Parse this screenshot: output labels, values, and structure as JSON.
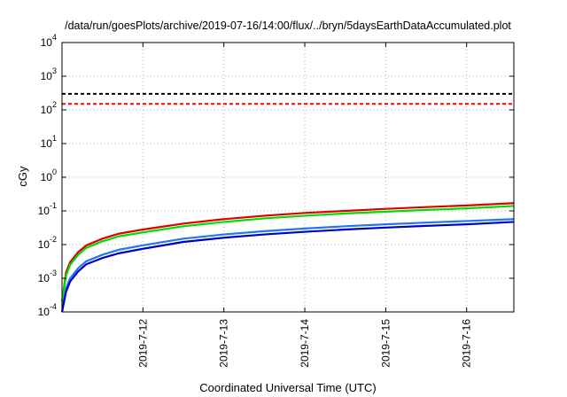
{
  "chart_data": {
    "type": "line",
    "title": "/data/run/goesPlots/archive/2019-07-16/14:00/flux/../bryn/5daysEarthDataAccumulated.plot",
    "xlabel": "Coordinated Universal Time (UTC)",
    "ylabel": "cGy",
    "xlim": [
      "2019-07-11 00:00",
      "2019-07-16 14:00"
    ],
    "ylim": [
      0.0001,
      10000
    ],
    "yscale": "log",
    "grid": true,
    "x_tick_labels": [
      "2019-7-12",
      "2019-7-13",
      "2019-7-14",
      "2019-7-15",
      "2019-7-16"
    ],
    "y_ticks": [
      {
        "base": "10",
        "exp": "-4"
      },
      {
        "base": "10",
        "exp": "-3"
      },
      {
        "base": "10",
        "exp": "-2"
      },
      {
        "base": "10",
        "exp": "-1"
      },
      {
        "base": "10",
        "exp": "0"
      },
      {
        "base": "10",
        "exp": "1"
      },
      {
        "base": "10",
        "exp": "2"
      },
      {
        "base": "10",
        "exp": "3"
      },
      {
        "base": "10",
        "exp": "4"
      }
    ],
    "thresholds": [
      {
        "value": 300,
        "color": "#000000",
        "style": "dashed"
      },
      {
        "value": 150,
        "color": "#ff0000",
        "style": "dashed"
      }
    ],
    "x": [
      "2019-07-11 00:00",
      "2019-07-11 01:12",
      "2019-07-11 02:24",
      "2019-07-11 04:48",
      "2019-07-11 07:12",
      "2019-07-11 12:00",
      "2019-07-11 16:48",
      "2019-07-12 00:00",
      "2019-07-12 12:00",
      "2019-07-13 00:00",
      "2019-07-13 12:00",
      "2019-07-14 00:00",
      "2019-07-14 12:00",
      "2019-07-15 00:00",
      "2019-07-15 12:00",
      "2019-07-16 00:00",
      "2019-07-16 14:00"
    ],
    "series": [
      {
        "color": "#dd0000",
        "values": [
          0.0002,
          0.0015,
          0.003,
          0.006,
          0.0095,
          0.015,
          0.021,
          0.028,
          0.042,
          0.057,
          0.072,
          0.087,
          0.1,
          0.115,
          0.13,
          0.145,
          0.17
        ]
      },
      {
        "color": "#00dd00",
        "values": [
          0.0002,
          0.0012,
          0.0025,
          0.005,
          0.008,
          0.0125,
          0.0175,
          0.023,
          0.035,
          0.047,
          0.06,
          0.072,
          0.084,
          0.095,
          0.107,
          0.119,
          0.14
        ]
      },
      {
        "color": "#2277ee",
        "values": [
          0.0001,
          0.0005,
          0.001,
          0.002,
          0.0032,
          0.005,
          0.007,
          0.0095,
          0.015,
          0.02,
          0.025,
          0.03,
          0.035,
          0.04,
          0.045,
          0.05,
          0.057
        ]
      },
      {
        "color": "#0000cc",
        "values": [
          0.0001,
          0.0004,
          0.0008,
          0.0016,
          0.0026,
          0.004,
          0.0055,
          0.0075,
          0.012,
          0.016,
          0.02,
          0.024,
          0.028,
          0.032,
          0.036,
          0.04,
          0.047
        ]
      }
    ]
  }
}
